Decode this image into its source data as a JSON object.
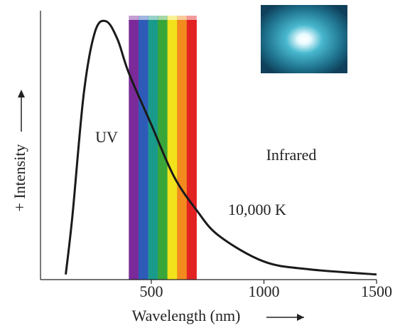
{
  "chart_data": {
    "type": "line",
    "x_label": "Wavelength (nm)",
    "y_label": "+ Intensity",
    "annotations": {
      "uv": "UV",
      "infrared": "Infrared",
      "curve": "10,000 K"
    },
    "x": [
      120,
      150,
      200,
      250,
      300,
      350,
      400,
      500,
      600,
      700,
      800,
      1000,
      1200,
      1500
    ],
    "series": [
      {
        "name": "10,000 K",
        "color": "#1a1a1a",
        "values": [
          0.02,
          0.25,
          0.72,
          0.96,
          1.0,
          0.93,
          0.8,
          0.6,
          0.4,
          0.27,
          0.17,
          0.07,
          0.04,
          0.02
        ]
      }
    ],
    "xlim": [
      0,
      1500
    ],
    "xticks": [
      500,
      1000,
      1500
    ],
    "ylim": [
      0,
      1
    ],
    "visible_band": [
      400,
      700
    ],
    "band_colors": [
      "#7b2a9a",
      "#2f5bb8",
      "#1a9a8a",
      "#3aa63a",
      "#f2e21c",
      "#f28a1e",
      "#e32222"
    ]
  }
}
